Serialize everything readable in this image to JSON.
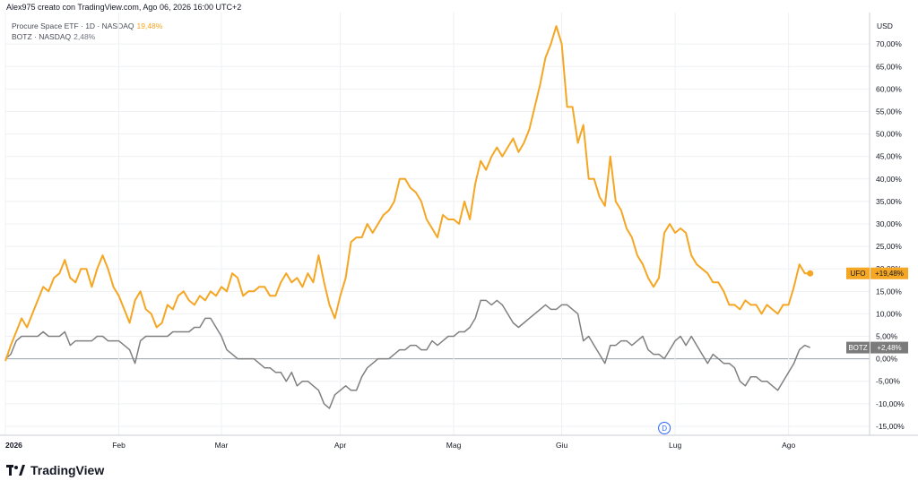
{
  "header": {
    "attribution": "Alex975 creato con TradingView.com, Ago 06, 2026 16:00 UTC+2"
  },
  "legend": {
    "ufo_label": "Procure Space ETF · 1D · NASDAQ",
    "ufo_value": "19,48%",
    "botz_label": "BOTZ · NASDAQ",
    "botz_value": "2,48%"
  },
  "axis": {
    "currency": "USD"
  },
  "badges": {
    "ufo": {
      "ticker": "UFO",
      "value": "+19,48%"
    },
    "botz": {
      "ticker": "BOTZ",
      "value": "+2,48%"
    }
  },
  "event_marker": "D",
  "branding": {
    "logo_text": "TradingView"
  },
  "colors": {
    "ufo": "#f5a623",
    "botz": "#808080",
    "grid": "#eef0f3",
    "zero_line": "#9aa0a8"
  },
  "chart_data": {
    "type": "line",
    "y_unit": "%",
    "ylim": [
      -17,
      77
    ],
    "y_ticks": [
      "70,00%",
      "65,00%",
      "60,00%",
      "55,00%",
      "50,00%",
      "45,00%",
      "40,00%",
      "35,00%",
      "30,00%",
      "25,00%",
      "20,00%",
      "15,00%",
      "10,00%",
      "5,00%",
      "0,00%",
      "-5,00%",
      "-10,00%",
      "-15,00%"
    ],
    "y_tick_values": [
      70,
      65,
      60,
      55,
      50,
      45,
      40,
      35,
      30,
      25,
      20,
      15,
      10,
      5,
      0,
      -5,
      -10,
      -15
    ],
    "x_ticks": [
      "2026",
      "Feb",
      "Mar",
      "Apr",
      "Mag",
      "Giu",
      "Lug",
      "Ago"
    ],
    "x_tick_values": [
      0,
      21,
      40,
      62,
      83,
      103,
      124,
      145
    ],
    "x_range": [
      0,
      160
    ],
    "grid": true,
    "series": [
      {
        "name": "Procure Space ETF",
        "ticker": "UFO",
        "values": [
          [
            0,
            -0.5
          ],
          [
            1,
            3
          ],
          [
            2,
            6
          ],
          [
            3,
            9
          ],
          [
            4,
            7
          ],
          [
            5,
            10
          ],
          [
            6,
            13
          ],
          [
            7,
            16
          ],
          [
            8,
            15
          ],
          [
            9,
            18
          ],
          [
            10,
            19
          ],
          [
            11,
            22
          ],
          [
            12,
            18
          ],
          [
            13,
            17
          ],
          [
            14,
            20
          ],
          [
            15,
            20
          ],
          [
            16,
            16
          ],
          [
            17,
            20
          ],
          [
            18,
            23
          ],
          [
            19,
            20
          ],
          [
            20,
            16
          ],
          [
            21,
            14
          ],
          [
            22,
            11
          ],
          [
            23,
            8
          ],
          [
            24,
            13
          ],
          [
            25,
            15
          ],
          [
            26,
            11
          ],
          [
            27,
            10
          ],
          [
            28,
            7
          ],
          [
            29,
            8
          ],
          [
            30,
            12
          ],
          [
            31,
            11
          ],
          [
            32,
            14
          ],
          [
            33,
            15
          ],
          [
            34,
            13
          ],
          [
            35,
            12
          ],
          [
            36,
            14
          ],
          [
            37,
            13
          ],
          [
            38,
            15
          ],
          [
            39,
            14
          ],
          [
            40,
            16
          ],
          [
            41,
            15
          ],
          [
            42,
            19
          ],
          [
            43,
            18
          ],
          [
            44,
            14
          ],
          [
            45,
            15
          ],
          [
            46,
            15
          ],
          [
            47,
            16
          ],
          [
            48,
            16
          ],
          [
            49,
            14
          ],
          [
            50,
            14
          ],
          [
            51,
            17
          ],
          [
            52,
            19
          ],
          [
            53,
            17
          ],
          [
            54,
            18
          ],
          [
            55,
            16
          ],
          [
            56,
            19
          ],
          [
            57,
            17
          ],
          [
            58,
            23
          ],
          [
            59,
            17
          ],
          [
            60,
            12
          ],
          [
            61,
            9
          ],
          [
            62,
            14
          ],
          [
            63,
            18
          ],
          [
            64,
            26
          ],
          [
            65,
            27
          ],
          [
            66,
            27
          ],
          [
            67,
            30
          ],
          [
            68,
            28
          ],
          [
            69,
            30
          ],
          [
            70,
            32
          ],
          [
            71,
            33
          ],
          [
            72,
            35
          ],
          [
            73,
            40
          ],
          [
            74,
            40
          ],
          [
            75,
            38
          ],
          [
            76,
            37
          ],
          [
            77,
            35
          ],
          [
            78,
            31
          ],
          [
            79,
            29
          ],
          [
            80,
            27
          ],
          [
            81,
            32
          ],
          [
            82,
            31
          ],
          [
            83,
            31
          ],
          [
            84,
            30
          ],
          [
            85,
            35
          ],
          [
            86,
            31
          ],
          [
            87,
            39
          ],
          [
            88,
            44
          ],
          [
            89,
            42
          ],
          [
            90,
            45
          ],
          [
            91,
            47
          ],
          [
            92,
            45
          ],
          [
            93,
            47
          ],
          [
            94,
            49
          ],
          [
            95,
            46
          ],
          [
            96,
            48
          ],
          [
            97,
            51
          ],
          [
            98,
            56
          ],
          [
            99,
            61
          ],
          [
            100,
            67
          ],
          [
            101,
            70
          ],
          [
            102,
            74
          ],
          [
            103,
            70
          ],
          [
            104,
            56
          ],
          [
            105,
            56
          ],
          [
            106,
            48
          ],
          [
            107,
            52
          ],
          [
            108,
            40
          ],
          [
            109,
            40
          ],
          [
            110,
            36
          ],
          [
            111,
            34
          ],
          [
            112,
            45
          ],
          [
            113,
            35
          ],
          [
            114,
            33
          ],
          [
            115,
            29
          ],
          [
            116,
            27
          ],
          [
            117,
            23
          ],
          [
            118,
            21
          ],
          [
            119,
            18
          ],
          [
            120,
            16
          ],
          [
            121,
            18
          ],
          [
            122,
            28
          ],
          [
            123,
            30
          ],
          [
            124,
            28
          ],
          [
            125,
            29
          ],
          [
            126,
            28
          ],
          [
            127,
            23
          ],
          [
            128,
            21
          ],
          [
            129,
            20
          ],
          [
            130,
            19
          ],
          [
            131,
            17
          ],
          [
            132,
            17
          ],
          [
            133,
            15
          ],
          [
            134,
            12
          ],
          [
            135,
            12
          ],
          [
            136,
            11
          ],
          [
            137,
            13
          ],
          [
            138,
            12
          ],
          [
            139,
            12
          ],
          [
            140,
            10
          ],
          [
            141,
            12
          ],
          [
            142,
            11
          ],
          [
            143,
            10
          ],
          [
            144,
            12
          ],
          [
            145,
            12
          ],
          [
            146,
            16
          ],
          [
            147,
            21
          ],
          [
            148,
            19
          ],
          [
            149,
            19
          ]
        ]
      },
      {
        "name": "BOTZ",
        "ticker": "BOTZ",
        "values": [
          [
            0,
            0
          ],
          [
            1,
            1
          ],
          [
            2,
            4
          ],
          [
            3,
            5
          ],
          [
            4,
            5
          ],
          [
            5,
            5
          ],
          [
            6,
            5
          ],
          [
            7,
            6
          ],
          [
            8,
            5
          ],
          [
            9,
            5
          ],
          [
            10,
            5
          ],
          [
            11,
            6
          ],
          [
            12,
            3
          ],
          [
            13,
            4
          ],
          [
            14,
            4
          ],
          [
            15,
            4
          ],
          [
            16,
            4
          ],
          [
            17,
            5
          ],
          [
            18,
            5
          ],
          [
            19,
            4
          ],
          [
            20,
            4
          ],
          [
            21,
            4
          ],
          [
            22,
            3
          ],
          [
            23,
            2
          ],
          [
            24,
            -1
          ],
          [
            25,
            4
          ],
          [
            26,
            5
          ],
          [
            27,
            5
          ],
          [
            28,
            5
          ],
          [
            29,
            5
          ],
          [
            30,
            5
          ],
          [
            31,
            6
          ],
          [
            32,
            6
          ],
          [
            33,
            6
          ],
          [
            34,
            6
          ],
          [
            35,
            7
          ],
          [
            36,
            7
          ],
          [
            37,
            9
          ],
          [
            38,
            9
          ],
          [
            39,
            7
          ],
          [
            40,
            5
          ],
          [
            41,
            2
          ],
          [
            42,
            1
          ],
          [
            43,
            0
          ],
          [
            44,
            0
          ],
          [
            45,
            0
          ],
          [
            46,
            0
          ],
          [
            47,
            -1
          ],
          [
            48,
            -2
          ],
          [
            49,
            -2
          ],
          [
            50,
            -3
          ],
          [
            51,
            -3
          ],
          [
            52,
            -5
          ],
          [
            53,
            -3
          ],
          [
            54,
            -6
          ],
          [
            55,
            -5
          ],
          [
            56,
            -5
          ],
          [
            57,
            -6
          ],
          [
            58,
            -7
          ],
          [
            59,
            -10
          ],
          [
            60,
            -11
          ],
          [
            61,
            -8
          ],
          [
            62,
            -7
          ],
          [
            63,
            -6
          ],
          [
            64,
            -7
          ],
          [
            65,
            -7
          ],
          [
            66,
            -4
          ],
          [
            67,
            -2
          ],
          [
            68,
            -1
          ],
          [
            69,
            0
          ],
          [
            70,
            0
          ],
          [
            71,
            0
          ],
          [
            72,
            1
          ],
          [
            73,
            2
          ],
          [
            74,
            2
          ],
          [
            75,
            3
          ],
          [
            76,
            3
          ],
          [
            77,
            2
          ],
          [
            78,
            2
          ],
          [
            79,
            4
          ],
          [
            80,
            3
          ],
          [
            81,
            4
          ],
          [
            82,
            5
          ],
          [
            83,
            5
          ],
          [
            84,
            6
          ],
          [
            85,
            6
          ],
          [
            86,
            7
          ],
          [
            87,
            9
          ],
          [
            88,
            13
          ],
          [
            89,
            13
          ],
          [
            90,
            12
          ],
          [
            91,
            13
          ],
          [
            92,
            12
          ],
          [
            93,
            10
          ],
          [
            94,
            8
          ],
          [
            95,
            7
          ],
          [
            96,
            8
          ],
          [
            97,
            9
          ],
          [
            98,
            10
          ],
          [
            99,
            11
          ],
          [
            100,
            12
          ],
          [
            101,
            11
          ],
          [
            102,
            11
          ],
          [
            103,
            12
          ],
          [
            104,
            12
          ],
          [
            105,
            11
          ],
          [
            106,
            10
          ],
          [
            107,
            4
          ],
          [
            108,
            5
          ],
          [
            109,
            3
          ],
          [
            110,
            1
          ],
          [
            111,
            -1
          ],
          [
            112,
            3
          ],
          [
            113,
            3
          ],
          [
            114,
            4
          ],
          [
            115,
            4
          ],
          [
            116,
            3
          ],
          [
            117,
            4
          ],
          [
            118,
            5
          ],
          [
            119,
            2
          ],
          [
            120,
            1
          ],
          [
            121,
            1
          ],
          [
            122,
            0
          ],
          [
            123,
            2
          ],
          [
            124,
            4
          ],
          [
            125,
            5
          ],
          [
            126,
            3
          ],
          [
            127,
            5
          ],
          [
            128,
            3
          ],
          [
            129,
            1
          ],
          [
            130,
            -1
          ],
          [
            131,
            1
          ],
          [
            132,
            0
          ],
          [
            133,
            -1
          ],
          [
            134,
            -1
          ],
          [
            135,
            -2
          ],
          [
            136,
            -5
          ],
          [
            137,
            -6
          ],
          [
            138,
            -4
          ],
          [
            139,
            -4
          ],
          [
            140,
            -5
          ],
          [
            141,
            -5
          ],
          [
            142,
            -6
          ],
          [
            143,
            -7
          ],
          [
            144,
            -5
          ],
          [
            145,
            -3
          ],
          [
            146,
            -1
          ],
          [
            147,
            2
          ],
          [
            148,
            3
          ],
          [
            149,
            2.5
          ]
        ]
      }
    ]
  }
}
